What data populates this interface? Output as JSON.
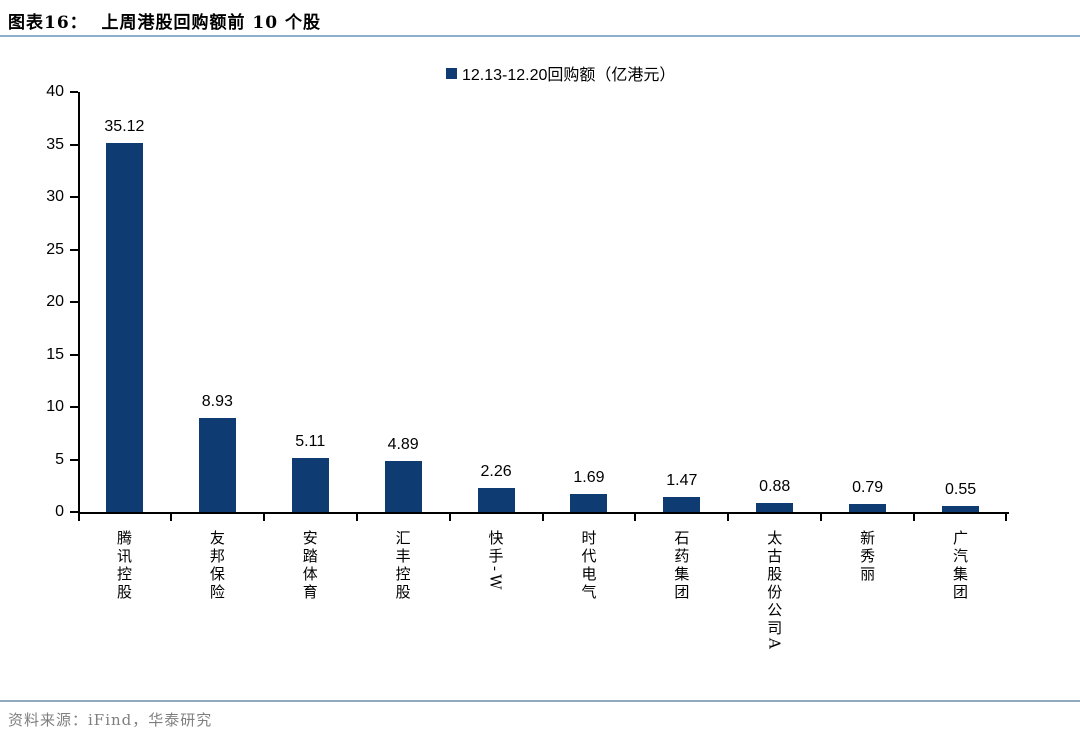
{
  "header": {
    "figure_label": "图表16：",
    "title_full": "图表16：  上周港股回购额前 10 个股"
  },
  "chart_data": {
    "type": "bar",
    "title": "上周港股回购额前 10 个股",
    "legend": [
      "12.13-12.20回购额（亿港元）"
    ],
    "legend_position": "top-center",
    "categories": [
      "腾讯控股",
      "友邦保险",
      "安踏体育",
      "汇丰控股",
      "快手-W",
      "时代电气",
      "石药集团",
      "太古股份公司A",
      "新秀丽",
      "广汽集团"
    ],
    "values": [
      35.12,
      8.93,
      5.11,
      4.89,
      2.26,
      1.69,
      1.47,
      0.88,
      0.79,
      0.55
    ],
    "value_labels": [
      "35.12",
      "8.93",
      "5.11",
      "4.89",
      "2.26",
      "1.69",
      "1.47",
      "0.88",
      "0.79",
      "0.55"
    ],
    "xlabel": "",
    "ylabel": "",
    "ylim": [
      0,
      40
    ],
    "ytick_step": 5,
    "yticks": [
      0,
      5,
      10,
      15,
      20,
      25,
      30,
      35,
      40
    ],
    "grid": false,
    "bar_color": "#0E3B72"
  },
  "colors": {
    "bar": "#0E3B72",
    "legend_swatch": "#0E3B72",
    "title_divider": "#8EAECE",
    "footer_divider": "#8FA9C0",
    "axis": "#000000",
    "source_text": "#7f7f7f"
  },
  "footer": {
    "source": "资料来源：iFind，华泰研究"
  }
}
